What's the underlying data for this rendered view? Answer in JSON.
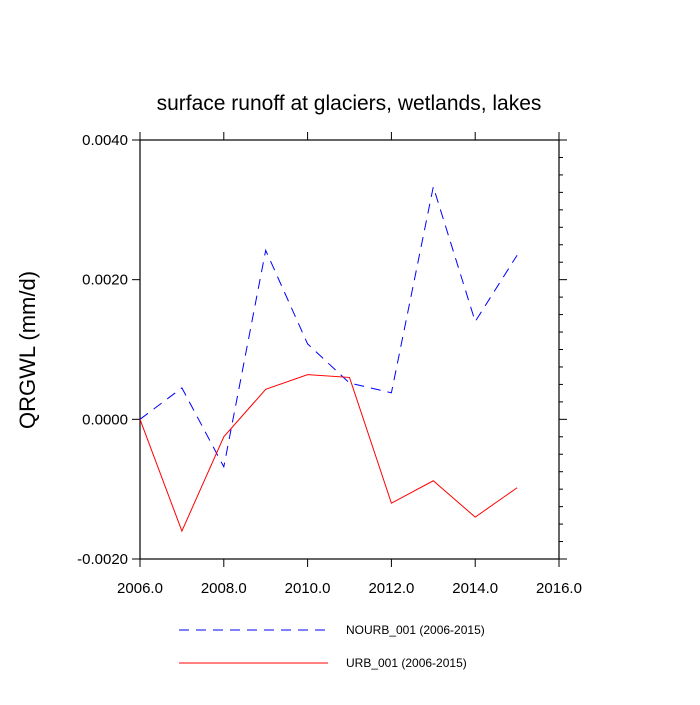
{
  "chart_data": {
    "type": "line",
    "title": "surface runoff at glaciers, wetlands, lakes",
    "xlabel": "",
    "ylabel": "QRGWL  (mm/d)",
    "xlim": [
      2006,
      2016
    ],
    "ylim": [
      -0.002,
      0.004
    ],
    "x_ticks": [
      2006,
      2008,
      2010,
      2012,
      2014,
      2016
    ],
    "x_tick_labels": [
      "2006.0",
      "2008.0",
      "2010.0",
      "2012.0",
      "2014.0",
      "2016.0"
    ],
    "y_ticks": [
      -0.002,
      0.0,
      0.002,
      0.004
    ],
    "y_tick_labels": [
      "-0.0020",
      "0.0000",
      "0.0020",
      "0.0040"
    ],
    "grid": false,
    "legend_position": "bottom",
    "x": [
      2006,
      2007,
      2008,
      2009,
      2010,
      2011,
      2012,
      2013,
      2014,
      2015
    ],
    "series": [
      {
        "name": "NOURB_001 (2006-2015)",
        "color": "#0000ff",
        "style": "dashed",
        "values": [
          0.0,
          0.00045,
          -0.00068,
          0.00242,
          0.00108,
          0.00052,
          0.00038,
          0.00333,
          0.0014,
          0.00235
        ]
      },
      {
        "name": "URB_001 (2006-2015)",
        "color": "#ff0000",
        "style": "solid",
        "values": [
          0.0,
          -0.0016,
          -0.00025,
          0.00043,
          0.00064,
          0.0006,
          -0.0012,
          -0.00088,
          -0.0014,
          -0.00098
        ]
      }
    ]
  }
}
